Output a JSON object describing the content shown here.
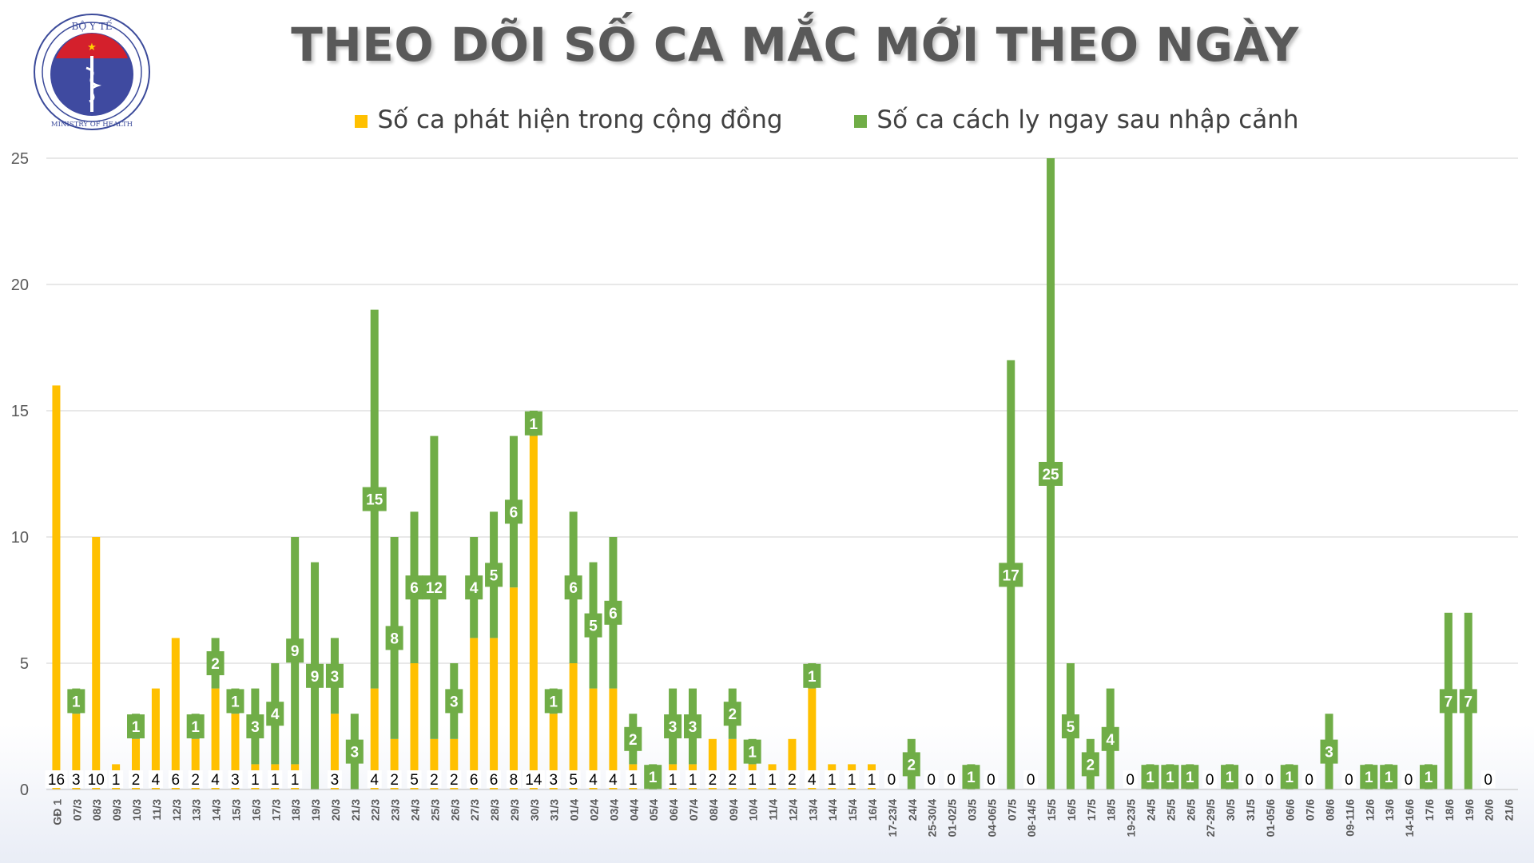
{
  "logo": {
    "top_text": "BỘ Y TẾ",
    "bottom_text": "MINISTRY OF HEALTH"
  },
  "chart_data": {
    "type": "bar",
    "stacked": true,
    "title": "THEO DÕI SỐ CA MẮC MỚI THEO NGÀY",
    "legend_position": "top",
    "grid": true,
    "ylim": [
      0,
      25
    ],
    "yticks": [
      0,
      5,
      10,
      15,
      20,
      25
    ],
    "colors": {
      "community": "#FFC000",
      "quarantine": "#70AD47",
      "grid": "#d0d0d0",
      "axis_text": "#595959"
    },
    "categories": [
      "GĐ 1",
      "07/3",
      "08/3",
      "09/3",
      "10/3",
      "11/3",
      "12/3",
      "13/3",
      "14/3",
      "15/3",
      "16/3",
      "17/3",
      "18/3",
      "19/3",
      "20/3",
      "21/3",
      "22/3",
      "23/3",
      "24/3",
      "25/3",
      "26/3",
      "27/3",
      "28/3",
      "29/3",
      "30/3",
      "31/3",
      "01/4",
      "02/4",
      "03/4",
      "04/4",
      "05/4",
      "06/4",
      "07/4",
      "08/4",
      "09/4",
      "10/4",
      "11/4",
      "12/4",
      "13/4",
      "14/4",
      "15/4",
      "16/4",
      "17-23/4",
      "24/4",
      "25-30/4",
      "01-02/5",
      "03/5",
      "04-06/5",
      "07/5",
      "08-14/5",
      "15/5",
      "16/5",
      "17/5",
      "18/5",
      "19-23/5",
      "24/5",
      "25/5",
      "26/5",
      "27-29/5",
      "30/5",
      "31/5",
      "01-05/6",
      "06/6",
      "07/6",
      "08/6",
      "09-11/6",
      "12/6",
      "13/6",
      "14-16/6",
      "17/6",
      "18/6",
      "19/6",
      "20/6",
      "21/6"
    ],
    "series": [
      {
        "name": "Số ca phát hiện trong cộng đồng",
        "values": [
          16,
          3,
          10,
          1,
          2,
          4,
          6,
          2,
          4,
          3,
          1,
          1,
          1,
          0,
          3,
          0,
          4,
          2,
          5,
          2,
          2,
          6,
          6,
          8,
          14,
          3,
          5,
          4,
          4,
          1,
          0,
          1,
          1,
          2,
          2,
          1,
          1,
          2,
          4,
          1,
          1,
          1,
          0,
          0,
          0,
          0,
          0,
          0,
          0,
          0,
          0,
          0,
          0,
          0,
          0,
          0,
          0,
          0,
          0,
          0,
          0,
          0,
          0,
          0,
          0,
          0,
          0,
          0,
          0,
          0,
          0,
          0,
          0,
          0
        ]
      },
      {
        "name": "Số ca cách ly ngay sau nhập cảnh",
        "values": [
          0,
          1,
          0,
          0,
          1,
          0,
          0,
          1,
          2,
          1,
          3,
          4,
          9,
          9,
          3,
          3,
          15,
          8,
          6,
          12,
          3,
          4,
          5,
          6,
          1,
          1,
          6,
          5,
          6,
          2,
          1,
          3,
          3,
          0,
          2,
          1,
          0,
          0,
          1,
          0,
          0,
          0,
          0,
          2,
          0,
          0,
          1,
          0,
          17,
          0,
          25,
          5,
          2,
          4,
          0,
          1,
          1,
          1,
          0,
          1,
          0,
          0,
          1,
          0,
          3,
          0,
          1,
          1,
          0,
          1,
          7,
          7,
          0,
          0
        ]
      }
    ],
    "bottom_labels": [
      "16",
      "3",
      "10",
      "1",
      "2",
      "4",
      "6",
      "2",
      "4",
      "3",
      "1",
      "1",
      "1",
      "",
      "3",
      "",
      "4",
      "2",
      "5",
      "2",
      "2",
      "6",
      "6",
      "8",
      "14",
      "3",
      "5",
      "4",
      "4",
      "1",
      "",
      "1",
      "1",
      "2",
      "2",
      "1",
      "1",
      "2",
      "4",
      "1",
      "1",
      "1",
      "0",
      "",
      "0",
      "0",
      "",
      "0",
      "",
      "0",
      "",
      "",
      "",
      "",
      "0",
      "",
      "",
      "",
      "0",
      "",
      "0",
      "0",
      "",
      "0",
      "",
      "0",
      "",
      "",
      "0",
      "",
      "",
      "",
      "0",
      ""
    ]
  }
}
